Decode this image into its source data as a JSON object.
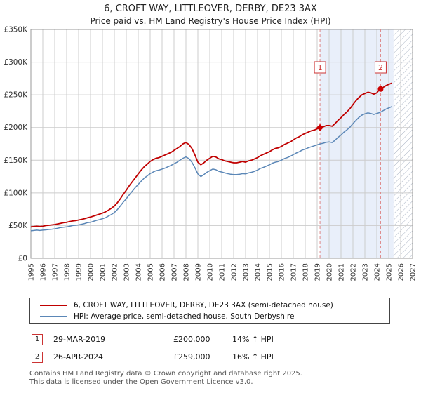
{
  "chart_data": {
    "type": "line",
    "title": "6, CROFT WAY, LITTLEOVER, DERBY, DE23 3AX",
    "subtitle": "Price paid vs. HM Land Registry's House Price Index (HPI)",
    "xlabel": "",
    "ylabel": "",
    "grid": true,
    "legend_position": "bottom",
    "unit": "GBP_thousands",
    "x_start": 1995,
    "x_step": 0.25,
    "x_range": [
      1995,
      2027
    ],
    "y_range": [
      0,
      350000
    ],
    "ytick_values": [
      0,
      50000,
      100000,
      150000,
      200000,
      250000,
      300000,
      350000
    ],
    "ytick_labels": [
      "£0",
      "£50K",
      "£100K",
      "£150K",
      "£200K",
      "£250K",
      "£300K",
      "£350K"
    ],
    "xtick_years": [
      1995,
      1996,
      1997,
      1998,
      1999,
      2000,
      2001,
      2002,
      2003,
      2004,
      2005,
      2006,
      2007,
      2008,
      2009,
      2010,
      2011,
      2012,
      2013,
      2014,
      2015,
      2016,
      2017,
      2018,
      2019,
      2020,
      2021,
      2022,
      2023,
      2024,
      2025,
      2026,
      2027
    ],
    "shaded_region": [
      2019.24,
      2025.4
    ],
    "shaded_color": "#e9effa",
    "hatched_region": [
      2025.4,
      2027
    ],
    "grid_color": "#cccccc",
    "axis_color": "#999999",
    "dashed_line_color": "#dd8888",
    "series": [
      {
        "name": "6, CROFT WAY, LITTLEOVER, DERBY, DE23 3AX (semi-detached house)",
        "color": "#c00000",
        "width": 1.8,
        "values": [
          48,
          48.5,
          49,
          48.5,
          49,
          50,
          50.5,
          51,
          51.5,
          52.5,
          53.5,
          54.5,
          55,
          56,
          57,
          57.5,
          58.5,
          59.5,
          60.5,
          62,
          63,
          64.5,
          66,
          67.5,
          69,
          71,
          73.5,
          76.5,
          80,
          85,
          91,
          98,
          104,
          111,
          117,
          123,
          129,
          135,
          140,
          144,
          148,
          151,
          153,
          154,
          156,
          158,
          160,
          162,
          165,
          168,
          171,
          175,
          177,
          174,
          168,
          158,
          147,
          143,
          146,
          150,
          153,
          156,
          155,
          152,
          151,
          149,
          148,
          147,
          146,
          146,
          147,
          148,
          147,
          149,
          150,
          152,
          154,
          157,
          159,
          161,
          163,
          166,
          168,
          169,
          171,
          174,
          176,
          178,
          181,
          184,
          186,
          189,
          191,
          193,
          195,
          196,
          198,
          200,
          201,
          203,
          203,
          202,
          206,
          211,
          215,
          220,
          224,
          229,
          235,
          241,
          246,
          250,
          252,
          254,
          253,
          251,
          253,
          259,
          261,
          264,
          266,
          268
        ]
      },
      {
        "name": "HPI: Average price, semi-detached house, South Derbyshire",
        "color": "#5b87b7",
        "width": 1.5,
        "values": [
          42,
          42.5,
          43,
          42.5,
          43,
          43.5,
          44,
          44.5,
          45,
          46,
          47,
          47.5,
          48,
          49,
          50,
          50.5,
          51,
          52,
          53,
          54.5,
          55,
          56.5,
          58,
          59,
          60.5,
          62,
          64.5,
          67,
          70,
          74.5,
          80,
          86,
          91,
          97,
          102.5,
          108,
          113,
          118,
          122.5,
          126,
          129.5,
          132,
          134,
          135,
          136.5,
          138,
          140,
          142,
          144.5,
          147,
          150,
          153,
          155,
          152.5,
          147,
          138.5,
          129,
          125,
          128,
          131.5,
          134,
          136.5,
          135.5,
          133,
          132,
          130.5,
          129.5,
          128.5,
          128,
          128,
          128.5,
          129.5,
          129,
          130.5,
          131.5,
          133,
          135,
          137.5,
          139,
          141,
          143,
          145.5,
          147,
          148,
          150,
          152.5,
          154,
          156,
          158.5,
          161,
          163,
          165.5,
          167,
          169,
          170.5,
          172,
          173.5,
          175,
          176,
          177.5,
          178,
          177,
          180.5,
          185,
          188.5,
          193,
          196.5,
          200.5,
          206,
          211,
          215.5,
          219,
          221,
          222.5,
          221.5,
          220,
          221.5,
          223,
          225.5,
          228,
          230,
          232
        ]
      }
    ],
    "sales": [
      {
        "label": "1",
        "x": 2019.24,
        "price": 200000,
        "marker": "diamond"
      },
      {
        "label": "2",
        "x": 2024.32,
        "price": 259000,
        "marker": "circle"
      }
    ]
  },
  "annotations": [
    {
      "num": "1",
      "date": "29-MAR-2019",
      "price": "£200,000",
      "hpi_change": "14% ↑ HPI"
    },
    {
      "num": "2",
      "date": "26-APR-2024",
      "price": "£259,000",
      "hpi_change": "16% ↑ HPI"
    }
  ],
  "footer": {
    "line1": "Contains HM Land Registry data © Crown copyright and database right 2025.",
    "line2": "This data is licensed under the Open Government Licence v3.0."
  }
}
